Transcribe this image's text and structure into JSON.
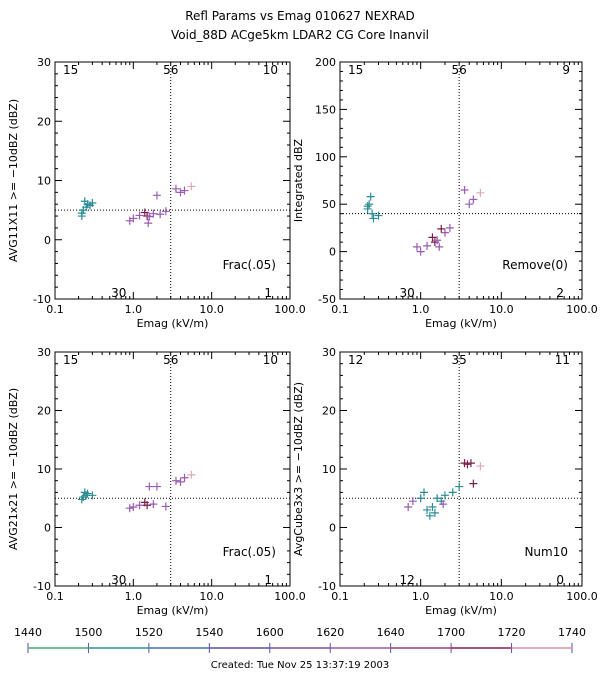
{
  "header": {
    "title": "Refl Params vs Emag   010627  NEXRAD",
    "subtitle": "Void_88D ACge5km LDAR2 CG Core Inanvil"
  },
  "footer": {
    "created": "Created: Tue Nov 25 13:37:19 2003"
  },
  "colors": {
    "teal": "#2a8c95",
    "purple": "#9b5ab5",
    "maroon": "#7a1e4a",
    "pink": "#e2a6b8"
  },
  "colorbar": {
    "labels": [
      "1440",
      "1500",
      "1520",
      "1540",
      "1600",
      "1620",
      "1640",
      "1700",
      "1720",
      "1740"
    ],
    "colors": [
      "#4aa57a",
      "#2f8f9c",
      "#4b6fa8",
      "#5a4ea5",
      "#7a4fa6",
      "#9a5aa8",
      "#9b3f78",
      "#8a1f4a",
      "#d98fa0"
    ]
  },
  "chart_data": [
    {
      "type": "scatter",
      "xlabel": "Emag (kV/m)",
      "ylabel": "AVG11X11 >= −10dBZ (dBZ)",
      "xscale": "log",
      "xlim": [
        0.1,
        100.0
      ],
      "ylim": [
        -10,
        30
      ],
      "xticks": [
        "0.1",
        "1.0",
        "10.0",
        "100.0"
      ],
      "yticks": [
        "-10",
        "0",
        "10",
        "20",
        "30"
      ],
      "vline": 3.0,
      "hline": 5,
      "corner_labels": {
        "top_left": "15",
        "top_mid": "56",
        "top_right": "10",
        "bottom_mid": "30",
        "bottom_right": "1"
      },
      "annotation": "Frac(.05)",
      "points": [
        {
          "x": 0.22,
          "y": 4.0,
          "c": "teal"
        },
        {
          "x": 0.23,
          "y": 5.0,
          "c": "teal"
        },
        {
          "x": 0.24,
          "y": 6.5,
          "c": "teal"
        },
        {
          "x": 0.25,
          "y": 5.5,
          "c": "teal"
        },
        {
          "x": 0.26,
          "y": 6.0,
          "c": "teal"
        },
        {
          "x": 0.28,
          "y": 5.8,
          "c": "teal"
        },
        {
          "x": 0.3,
          "y": 6.2,
          "c": "teal"
        },
        {
          "x": 0.22,
          "y": 4.5,
          "c": "teal"
        },
        {
          "x": 0.9,
          "y": 3.2,
          "c": "purple"
        },
        {
          "x": 1.0,
          "y": 3.6,
          "c": "purple"
        },
        {
          "x": 1.2,
          "y": 4.1,
          "c": "purple"
        },
        {
          "x": 1.4,
          "y": 4.6,
          "c": "maroon"
        },
        {
          "x": 1.5,
          "y": 4.0,
          "c": "maroon"
        },
        {
          "x": 1.6,
          "y": 3.9,
          "c": "purple"
        },
        {
          "x": 1.8,
          "y": 4.4,
          "c": "purple"
        },
        {
          "x": 2.0,
          "y": 7.5,
          "c": "purple"
        },
        {
          "x": 2.2,
          "y": 4.3,
          "c": "purple"
        },
        {
          "x": 2.6,
          "y": 4.8,
          "c": "purple"
        },
        {
          "x": 3.5,
          "y": 8.6,
          "c": "purple"
        },
        {
          "x": 4.0,
          "y": 8.0,
          "c": "purple"
        },
        {
          "x": 4.5,
          "y": 8.3,
          "c": "purple"
        },
        {
          "x": 5.5,
          "y": 9.0,
          "c": "pink"
        },
        {
          "x": 1.55,
          "y": 2.8,
          "c": "purple"
        }
      ]
    },
    {
      "type": "scatter",
      "xlabel": "Emag (kV/m)",
      "ylabel": "Integrated dBZ",
      "xscale": "log",
      "xlim": [
        0.1,
        100.0
      ],
      "ylim": [
        -50,
        200
      ],
      "xticks": [
        "0.1",
        "1.0",
        "10.0",
        "100.0"
      ],
      "yticks": [
        "-50",
        "0",
        "50",
        "100",
        "150",
        "200"
      ],
      "vline": 3.0,
      "hline": 40,
      "corner_labels": {
        "top_left": "15",
        "top_mid": "56",
        "top_right": "9",
        "bottom_mid": "30",
        "bottom_right": "2"
      },
      "annotation": "Remove(0)",
      "points": [
        {
          "x": 0.22,
          "y": 45,
          "c": "teal"
        },
        {
          "x": 0.23,
          "y": 50,
          "c": "teal"
        },
        {
          "x": 0.24,
          "y": 58,
          "c": "teal"
        },
        {
          "x": 0.25,
          "y": 40,
          "c": "teal"
        },
        {
          "x": 0.26,
          "y": 35,
          "c": "teal"
        },
        {
          "x": 0.3,
          "y": 38,
          "c": "teal"
        },
        {
          "x": 0.22,
          "y": 48,
          "c": "teal"
        },
        {
          "x": 0.9,
          "y": 5,
          "c": "purple"
        },
        {
          "x": 1.0,
          "y": 0,
          "c": "purple"
        },
        {
          "x": 1.2,
          "y": 6,
          "c": "purple"
        },
        {
          "x": 1.4,
          "y": 15,
          "c": "maroon"
        },
        {
          "x": 1.5,
          "y": 10,
          "c": "maroon"
        },
        {
          "x": 1.6,
          "y": 12,
          "c": "purple"
        },
        {
          "x": 1.8,
          "y": 24,
          "c": "maroon"
        },
        {
          "x": 2.0,
          "y": 20,
          "c": "purple"
        },
        {
          "x": 2.3,
          "y": 25,
          "c": "purple"
        },
        {
          "x": 3.5,
          "y": 65,
          "c": "purple"
        },
        {
          "x": 4.0,
          "y": 50,
          "c": "purple"
        },
        {
          "x": 4.5,
          "y": 55,
          "c": "purple"
        },
        {
          "x": 5.5,
          "y": 62,
          "c": "pink"
        },
        {
          "x": 1.7,
          "y": 5,
          "c": "purple"
        }
      ]
    },
    {
      "type": "scatter",
      "xlabel": "Emag (kV/m)",
      "ylabel": "AVG21x21 >= −10dBZ (dBZ)",
      "xscale": "log",
      "xlim": [
        0.1,
        100.0
      ],
      "ylim": [
        -10,
        30
      ],
      "xticks": [
        "0.1",
        "1.0",
        "10.0",
        "100.0"
      ],
      "yticks": [
        "-10",
        "0",
        "10",
        "20",
        "30"
      ],
      "vline": 3.0,
      "hline": 5,
      "corner_labels": {
        "top_left": "15",
        "top_mid": "56",
        "top_right": "10",
        "bottom_mid": "30",
        "bottom_right": "1"
      },
      "annotation": "Frac(.05)",
      "points": [
        {
          "x": 0.22,
          "y": 4.8,
          "c": "teal"
        },
        {
          "x": 0.23,
          "y": 5.2,
          "c": "teal"
        },
        {
          "x": 0.24,
          "y": 6.0,
          "c": "teal"
        },
        {
          "x": 0.25,
          "y": 5.5,
          "c": "teal"
        },
        {
          "x": 0.26,
          "y": 5.8,
          "c": "teal"
        },
        {
          "x": 0.3,
          "y": 5.5,
          "c": "teal"
        },
        {
          "x": 0.9,
          "y": 3.3,
          "c": "purple"
        },
        {
          "x": 1.0,
          "y": 3.5,
          "c": "purple"
        },
        {
          "x": 1.2,
          "y": 3.8,
          "c": "purple"
        },
        {
          "x": 1.4,
          "y": 4.3,
          "c": "maroon"
        },
        {
          "x": 1.5,
          "y": 3.8,
          "c": "maroon"
        },
        {
          "x": 1.6,
          "y": 7.0,
          "c": "purple"
        },
        {
          "x": 1.8,
          "y": 4.0,
          "c": "purple"
        },
        {
          "x": 2.0,
          "y": 7.0,
          "c": "purple"
        },
        {
          "x": 2.6,
          "y": 3.6,
          "c": "purple"
        },
        {
          "x": 3.5,
          "y": 8.0,
          "c": "purple"
        },
        {
          "x": 4.0,
          "y": 7.8,
          "c": "purple"
        },
        {
          "x": 4.5,
          "y": 8.5,
          "c": "purple"
        },
        {
          "x": 5.5,
          "y": 9.0,
          "c": "pink"
        }
      ]
    },
    {
      "type": "scatter",
      "xlabel": "Emag (kV/m)",
      "ylabel": "AvgCube3x3 >= −10dBZ (dBZ)",
      "xscale": "log",
      "xlim": [
        0.1,
        100.0
      ],
      "ylim": [
        -10,
        30
      ],
      "xticks": [
        "0.1",
        "1.0",
        "10.0",
        "100.0"
      ],
      "yticks": [
        "-10",
        "0",
        "10",
        "20",
        "30"
      ],
      "vline": 3.0,
      "hline": 5,
      "corner_labels": {
        "top_left": "12",
        "top_mid": "35",
        "top_right": "11",
        "bottom_mid": "12",
        "bottom_right": "0"
      },
      "annotation": "Num10",
      "points": [
        {
          "x": 1.0,
          "y": 5.0,
          "c": "teal"
        },
        {
          "x": 1.1,
          "y": 6.0,
          "c": "teal"
        },
        {
          "x": 1.2,
          "y": 3.0,
          "c": "teal"
        },
        {
          "x": 1.3,
          "y": 2.0,
          "c": "teal"
        },
        {
          "x": 1.4,
          "y": 3.5,
          "c": "teal"
        },
        {
          "x": 1.5,
          "y": 2.5,
          "c": "teal"
        },
        {
          "x": 1.6,
          "y": 5.0,
          "c": "teal"
        },
        {
          "x": 1.8,
          "y": 4.5,
          "c": "teal"
        },
        {
          "x": 2.0,
          "y": 5.5,
          "c": "teal"
        },
        {
          "x": 2.5,
          "y": 6.0,
          "c": "teal"
        },
        {
          "x": 3.0,
          "y": 7.0,
          "c": "teal"
        },
        {
          "x": 0.7,
          "y": 3.5,
          "c": "purple"
        },
        {
          "x": 0.8,
          "y": 4.5,
          "c": "purple"
        },
        {
          "x": 1.9,
          "y": 4.0,
          "c": "purple"
        },
        {
          "x": 3.5,
          "y": 11.0,
          "c": "maroon"
        },
        {
          "x": 3.8,
          "y": 10.8,
          "c": "maroon"
        },
        {
          "x": 4.2,
          "y": 11.0,
          "c": "maroon"
        },
        {
          "x": 4.5,
          "y": 7.5,
          "c": "maroon"
        },
        {
          "x": 5.5,
          "y": 10.5,
          "c": "pink"
        }
      ]
    }
  ]
}
